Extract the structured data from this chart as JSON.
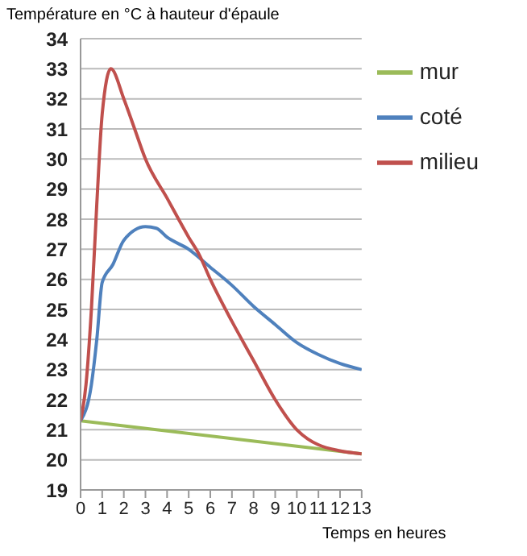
{
  "chart_data": {
    "type": "line",
    "ylabel": "Température en °C à hauteur d'épaule",
    "xlabel": "Temps en heures",
    "series": [
      {
        "name": "mur",
        "color": "#9bbb59",
        "x": [
          0,
          13
        ],
        "values": [
          21.3,
          20.2
        ]
      },
      {
        "name": "coté",
        "color": "#4f81bd",
        "x": [
          0,
          0.5,
          0.75,
          1,
          1.5,
          2,
          3,
          3.5,
          4,
          5,
          6,
          7,
          8,
          9,
          10,
          11,
          12,
          13
        ],
        "values": [
          21.3,
          22.5,
          24,
          25.9,
          26.5,
          27.3,
          27.75,
          27.7,
          27.4,
          27,
          26.4,
          25.8,
          25.1,
          24.5,
          23.9,
          23.5,
          23.2,
          23
        ]
      },
      {
        "name": "milieu",
        "color": "#c0504d",
        "x": [
          0,
          0.25,
          0.5,
          0.75,
          1,
          1.4,
          2,
          2.5,
          3,
          4,
          5,
          5.5,
          6,
          7,
          8,
          9,
          10,
          10.5,
          11,
          12,
          13
        ],
        "values": [
          21.3,
          22.5,
          25,
          28.5,
          31.5,
          33,
          32,
          31,
          30,
          28.7,
          27.4,
          26.8,
          26,
          24.6,
          23.3,
          22,
          21,
          20.7,
          20.5,
          20.3,
          20.2
        ]
      }
    ],
    "xlim": [
      0,
      13
    ],
    "xticks": [
      0,
      1,
      2,
      3,
      4,
      5,
      6,
      7,
      8,
      9,
      10,
      11,
      12,
      13
    ],
    "ylim": [
      19,
      34
    ],
    "yticks": [
      19,
      20,
      21,
      22,
      23,
      24,
      25,
      26,
      27,
      28,
      29,
      30,
      31,
      32,
      33,
      34
    ],
    "grid": "y",
    "legend": "top right",
    "marker": "none",
    "line_style": "solid"
  }
}
